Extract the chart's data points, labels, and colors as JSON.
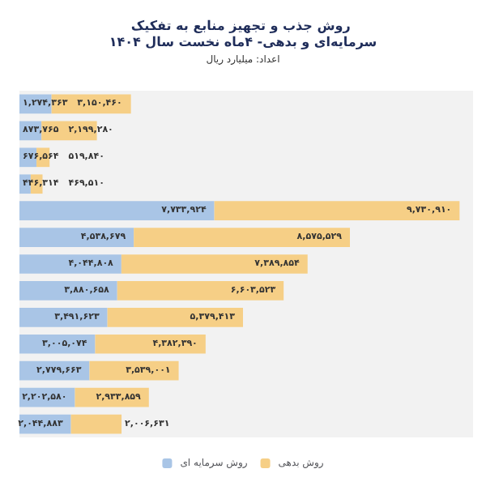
{
  "chart_data": {
    "type": "bar",
    "orientation": "horizontal",
    "stacked": true,
    "title": "روش جذب و تجهیز منابع به تفکیک سرمایه‌ای و بدهی- ۴ماه نخست سال ۱۴۰۴",
    "subtitle": "اعداد: میلیارد ریال",
    "categories": [
      null,
      null,
      null,
      null,
      null,
      null,
      null,
      null,
      null,
      null,
      null,
      null,
      null
    ],
    "series": [
      {
        "name": "روش سرمایه ای",
        "color": "#a9c5e6",
        "values": [
          1274363,
          873765,
          676564,
          446314,
          7733924,
          4538679,
          4044808,
          3880658,
          3491623,
          3005074,
          2779663,
          2202580,
          2044883
        ],
        "value_labels": [
          "۱,۲۷۴,۳۶۳",
          "۸۷۳,۷۶۵",
          "۶۷۶,۵۶۴",
          "۴۴۶,۳۱۴",
          "۷,۷۳۳,۹۲۴",
          "۴,۵۳۸,۶۷۹",
          "۴,۰۴۴,۸۰۸",
          "۳,۸۸۰,۶۵۸",
          "۳,۴۹۱,۶۲۳",
          "۳,۰۰۵,۰۷۴",
          "۲,۷۷۹,۶۶۳",
          "۲,۲۰۲,۵۸۰",
          "۲,۰۴۴,۸۸۳"
        ]
      },
      {
        "name": "روش بدهی",
        "color": "#f6cf86",
        "values": [
          3150460,
          2199280,
          519840,
          469510,
          9730910,
          8575529,
          7389854,
          6603523,
          5379413,
          4382390,
          3539001,
          2933859,
          2006631
        ],
        "value_labels": [
          "۳,۱۵۰,۴۶۰",
          "۲,۱۹۹,۲۸۰",
          "۵۱۹,۸۴۰",
          "۴۶۹,۵۱۰",
          "۹,۷۳۰,۹۱۰",
          "۸,۵۷۵,۵۲۹",
          "۷,۳۸۹,۸۵۴",
          "۶,۶۰۳,۵۲۳",
          "۵,۳۷۹,۴۱۳",
          "۴,۳۸۲,۳۹۰",
          "۳,۵۳۹,۰۰۱",
          "۲,۹۳۳,۸۵۹",
          "۲,۰۰۶,۶۳۱"
        ]
      }
    ],
    "tick_labels": false,
    "grid": false,
    "legend": "bottom"
  }
}
